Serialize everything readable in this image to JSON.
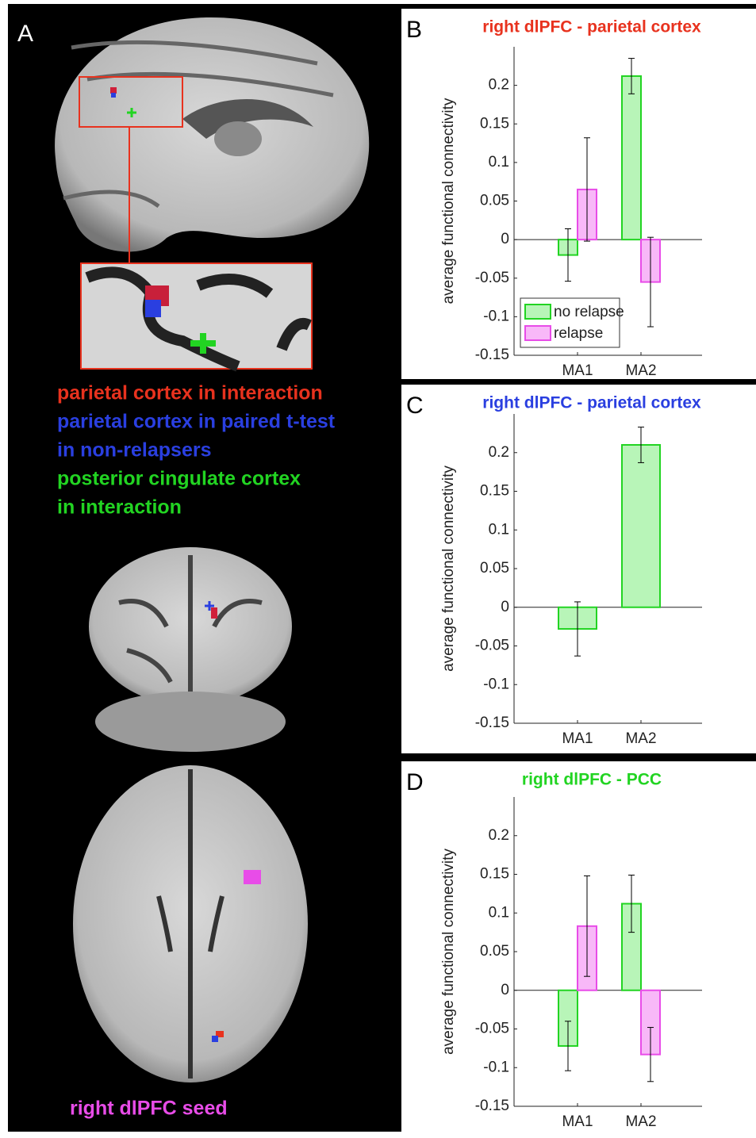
{
  "panel_a": {
    "label": "A",
    "legend": [
      {
        "text": "parietal cortex in interaction",
        "color": "#e8321e"
      },
      {
        "text": "parietal cortex in paired t-test",
        "color": "#2a3fe0"
      },
      {
        "text": "in non-relapsers",
        "color": "#2a3fe0"
      },
      {
        "text": "posterior cingulate cortex",
        "color": "#22d422"
      },
      {
        "text": "in interaction",
        "color": "#22d422"
      }
    ],
    "seed_label": {
      "text": "right dlPFC seed",
      "color": "#e84ce8"
    }
  },
  "chart_data": [
    {
      "type": "bar",
      "panel": "B",
      "title": "right dlPFC - parietal cortex",
      "title_color": "#e8321e",
      "ylabel": "average functional connectivity",
      "categories": [
        "MA1",
        "MA2"
      ],
      "series": [
        {
          "name": "no relapse",
          "color": "#22d422",
          "fill": "#b8f5b8",
          "values": [
            -0.02,
            0.212
          ],
          "errors": [
            0.034,
            0.023
          ]
        },
        {
          "name": "relapse",
          "color": "#e84ce8",
          "fill": "#f8b8f8",
          "values": [
            0.065,
            -0.055
          ],
          "errors": [
            0.067,
            0.058
          ]
        }
      ],
      "ylim": [
        -0.15,
        0.25
      ],
      "yticks": [
        -0.15,
        -0.1,
        -0.05,
        0,
        0.05,
        0.1,
        0.15,
        0.2
      ],
      "legend": "lower left"
    },
    {
      "type": "bar",
      "panel": "C",
      "title": "right dlPFC - parietal cortex",
      "title_color": "#2a3fe0",
      "ylabel": "average functional connectivity",
      "categories": [
        "MA1",
        "MA2"
      ],
      "series": [
        {
          "color": "#22d422",
          "fill": "#b8f5b8",
          "values": [
            -0.028,
            0.21
          ],
          "errors": [
            0.035,
            0.023
          ]
        }
      ],
      "ylim": [
        -0.15,
        0.25
      ],
      "yticks": [
        -0.15,
        -0.1,
        -0.05,
        0,
        0.05,
        0.1,
        0.15,
        0.2
      ]
    },
    {
      "type": "bar",
      "panel": "D",
      "title": "right dlPFC - PCC",
      "title_color": "#22d422",
      "ylabel": "average functional connectivity",
      "categories": [
        "MA1",
        "MA2"
      ],
      "series": [
        {
          "color": "#22d422",
          "fill": "#b8f5b8",
          "values": [
            -0.072,
            0.112
          ],
          "errors": [
            0.032,
            0.037
          ]
        },
        {
          "color": "#e84ce8",
          "fill": "#f8b8f8",
          "values": [
            0.083,
            -0.083
          ],
          "errors": [
            0.065,
            0.035
          ]
        }
      ],
      "ylim": [
        -0.15,
        0.25
      ],
      "yticks": [
        -0.15,
        -0.1,
        -0.05,
        0,
        0.05,
        0.1,
        0.15,
        0.2
      ]
    }
  ]
}
